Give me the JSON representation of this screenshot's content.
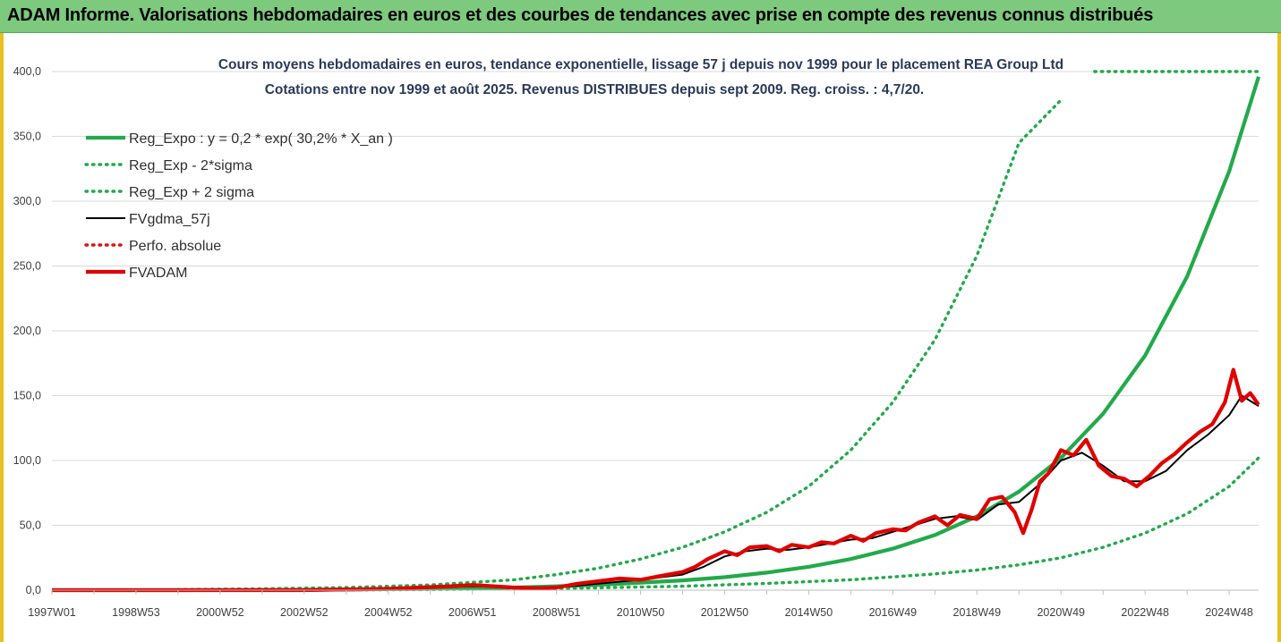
{
  "header": {
    "title": "ADAM Informe. Valorisations hebdomadaires en euros et des courbes de tendances avec prise en compte des revenus connus distribués"
  },
  "chart_data": {
    "type": "line",
    "title": "Cours moyens hebdomadaires en euros, tendance exponentielle, lissage 57 j depuis nov 1999 pour le placement REA Group Ltd",
    "subtitle": "Cotations entre nov 1999 et août 2025.  Revenus DISTRIBUES depuis sept 2009.  Reg. croiss. : 4,7/20.",
    "xlabel": "",
    "ylabel": "",
    "ylim": [
      0,
      400
    ],
    "xlim": [
      1997.0,
      2025.7
    ],
    "y_ticks": [
      "0,0",
      "50,0",
      "100,0",
      "150,0",
      "200,0",
      "250,0",
      "300,0",
      "350,0",
      "400,0"
    ],
    "y_tick_values": [
      0,
      50,
      100,
      150,
      200,
      250,
      300,
      350,
      400
    ],
    "x_ticks": [
      "1997W01",
      "1998W53",
      "2000W52",
      "2002W52",
      "2004W52",
      "2006W51",
      "2008W51",
      "2010W50",
      "2012W50",
      "2014W50",
      "2016W49",
      "2018W49",
      "2020W49",
      "2022W48",
      "2024W48"
    ],
    "x_tick_values": [
      1997.0,
      1999.0,
      2001.0,
      2003.0,
      2005.0,
      2007.0,
      2009.0,
      2011.0,
      2013.0,
      2015.0,
      2017.0,
      2019.0,
      2021.0,
      2023.0,
      2025.0
    ],
    "grid": true,
    "legend_position": "top-left",
    "series": [
      {
        "name": "Reg_Expo : y = 0,2 * exp( 30,2% *  X_an )",
        "color": "#22aa4a",
        "style": "solid-thick",
        "x": [
          1997.0,
          2000.0,
          2003.0,
          2006.0,
          2008.0,
          2010.0,
          2012.0,
          2013.0,
          2014.0,
          2015.0,
          2016.0,
          2017.0,
          2018.0,
          2019.0,
          2020.0,
          2021.0,
          2022.0,
          2023.0,
          2024.0,
          2025.0,
          2025.7
        ],
        "values": [
          0,
          0,
          0.3,
          1.0,
          2.0,
          4.0,
          7.5,
          10.0,
          13.5,
          18.0,
          24.0,
          32.0,
          42.5,
          57.0,
          76.0,
          102.0,
          136.0,
          181.0,
          242.0,
          323.0,
          396.0
        ]
      },
      {
        "name": "Reg_Exp - 2*sigma",
        "color": "#22aa4a",
        "style": "dotted",
        "x": [
          2000.0,
          2004.0,
          2006.0,
          2008.0,
          2010.0,
          2012.0,
          2014.0,
          2016.0,
          2018.0,
          2019.0,
          2020.0,
          2021.0,
          2022.0,
          2023.0,
          2024.0,
          2025.0,
          2025.7
        ],
        "values": [
          0,
          0.2,
          0.4,
          1.0,
          1.8,
          3.0,
          5.2,
          8.0,
          12.5,
          15.5,
          19.5,
          25.0,
          33.0,
          44.0,
          59.0,
          80.0,
          102.0
        ]
      },
      {
        "name": "Reg_Exp + 2 sigma",
        "color": "#22aa4a",
        "style": "dotted",
        "x": [
          2000.0,
          2002.0,
          2004.0,
          2006.0,
          2008.0,
          2009.0,
          2010.0,
          2011.0,
          2012.0,
          2013.0,
          2014.0,
          2015.0,
          2016.0,
          2017.0,
          2018.0,
          2019.0,
          2020.0,
          2021.0
        ],
        "values": [
          0.5,
          1.0,
          2.0,
          4.0,
          8.0,
          12.0,
          17.0,
          24.0,
          33.0,
          45.0,
          60.0,
          80.0,
          108.0,
          145.0,
          193.0,
          258.0,
          345.0,
          378.0
        ],
        "cap_value": 400,
        "cap_x": [
          2021.8,
          2025.7
        ]
      },
      {
        "name": "FVgdma_57j",
        "color": "#000000",
        "style": "solid",
        "x": [
          1997.0,
          2003.0,
          2005.0,
          2007.0,
          2008.0,
          2009.0,
          2010.0,
          2011.0,
          2012.0,
          2012.5,
          2013.0,
          2013.5,
          2014.0,
          2014.5,
          2015.0,
          2015.5,
          2016.0,
          2016.5,
          2017.0,
          2017.5,
          2018.0,
          2018.5,
          2019.0,
          2019.5,
          2020.0,
          2020.5,
          2021.0,
          2021.5,
          2022.0,
          2022.5,
          2023.0,
          2023.5,
          2024.0,
          2024.5,
          2025.0,
          2025.3,
          2025.7
        ],
        "values": [
          0,
          0,
          1.0,
          3.0,
          2.5,
          2.0,
          5.0,
          8.0,
          12.0,
          18.0,
          26.0,
          30.0,
          32.0,
          31.0,
          33.0,
          36.0,
          39.0,
          40.0,
          45.0,
          50.0,
          55.0,
          57.0,
          54.0,
          66.0,
          68.0,
          82.0,
          100.0,
          106.0,
          96.0,
          84.0,
          84.0,
          92.0,
          108.0,
          120.0,
          135.0,
          150.0,
          142.0
        ]
      },
      {
        "name": "Perfo. absolue",
        "color": "#e01010",
        "style": "dotted",
        "x": [],
        "values": []
      },
      {
        "name": "FVADAM",
        "color": "#e00000",
        "style": "solid-thick",
        "x": [
          1997.0,
          2003.0,
          2005.0,
          2006.5,
          2007.0,
          2007.5,
          2008.0,
          2008.5,
          2009.0,
          2009.5,
          2010.0,
          2010.5,
          2011.0,
          2011.5,
          2012.0,
          2012.3,
          2012.6,
          2013.0,
          2013.3,
          2013.6,
          2014.0,
          2014.3,
          2014.6,
          2015.0,
          2015.3,
          2015.6,
          2016.0,
          2016.3,
          2016.6,
          2017.0,
          2017.3,
          2017.6,
          2018.0,
          2018.3,
          2018.6,
          2019.0,
          2019.3,
          2019.6,
          2019.9,
          2020.1,
          2020.3,
          2020.5,
          2020.7,
          2021.0,
          2021.3,
          2021.6,
          2021.9,
          2022.2,
          2022.5,
          2022.8,
          2023.1,
          2023.4,
          2023.7,
          2024.0,
          2024.3,
          2024.6,
          2024.9,
          2025.1,
          2025.3,
          2025.5,
          2025.7
        ],
        "values": [
          0,
          0,
          1.0,
          3.0,
          4.0,
          3.0,
          2.0,
          1.5,
          2.0,
          5.0,
          7.0,
          9.0,
          8.0,
          11.0,
          14.0,
          18.0,
          24.0,
          30.0,
          27.0,
          33.0,
          34.0,
          30.0,
          35.0,
          33.0,
          37.0,
          36.0,
          42.0,
          38.0,
          44.0,
          47.0,
          46.0,
          52.0,
          57.0,
          50.0,
          58.0,
          55.0,
          70.0,
          72.0,
          60.0,
          44.0,
          62.0,
          84.0,
          90.0,
          108.0,
          104.0,
          116.0,
          96.0,
          88.0,
          86.0,
          80.0,
          88.0,
          98.0,
          105.0,
          114.0,
          122.0,
          128.0,
          145.0,
          170.0,
          146.0,
          152.0,
          143.0
        ]
      }
    ]
  }
}
